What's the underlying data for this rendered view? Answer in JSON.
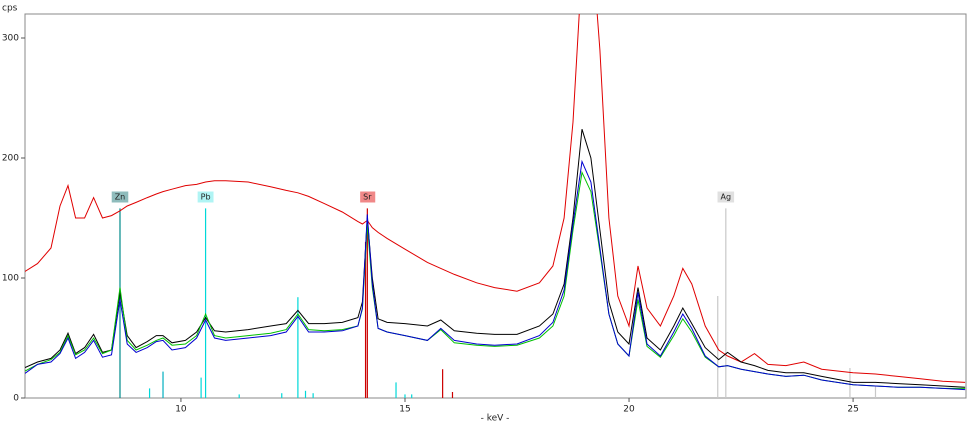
{
  "chart_data": {
    "type": "line",
    "y_label": "cps",
    "x_label": "- keV -",
    "xlim": [
      6.52,
      27.52
    ],
    "ylim": [
      0,
      320
    ],
    "xticks": [
      10,
      15,
      20,
      25
    ],
    "yticks": [
      0,
      100,
      200,
      300
    ],
    "x": [
      6.5,
      6.8,
      7.1,
      7.3,
      7.48,
      7.65,
      7.85,
      8.05,
      8.25,
      8.45,
      8.64,
      8.8,
      9.0,
      9.25,
      9.45,
      9.6,
      9.8,
      10.1,
      10.35,
      10.55,
      10.75,
      11.0,
      11.5,
      12.0,
      12.35,
      12.61,
      12.85,
      13.2,
      13.6,
      13.95,
      14.05,
      14.16,
      14.27,
      14.4,
      14.6,
      15.0,
      15.5,
      15.8,
      16.1,
      16.6,
      17.0,
      17.5,
      18.0,
      18.3,
      18.55,
      18.75,
      18.95,
      19.15,
      19.35,
      19.55,
      19.75,
      20.0,
      20.2,
      20.4,
      20.7,
      21.0,
      21.2,
      21.4,
      21.7,
      22.0,
      22.2,
      22.5,
      22.8,
      23.1,
      23.5,
      23.9,
      24.3,
      25.0,
      25.5,
      26.0,
      26.5,
      27.0,
      27.5
    ],
    "series": [
      {
        "color": "#e00000",
        "values": [
          105,
          112,
          125,
          160,
          177,
          150,
          150,
          167,
          150,
          152,
          156,
          160,
          163,
          167,
          170,
          172,
          174,
          177,
          178,
          180,
          181,
          181,
          180,
          176,
          173,
          171,
          168,
          162,
          155,
          147,
          145,
          148,
          142,
          138,
          133,
          124,
          113,
          108,
          103,
          96,
          92,
          89,
          96,
          110,
          150,
          230,
          360,
          390,
          290,
          150,
          85,
          60,
          110,
          75,
          60,
          85,
          108,
          95,
          60,
          40,
          35,
          30,
          37,
          28,
          27,
          30,
          24,
          21,
          20,
          18,
          16,
          14,
          13
        ]
      },
      {
        "color": "#000000",
        "values": [
          25,
          30,
          33,
          40,
          54,
          37,
          42,
          53,
          38,
          40,
          88,
          52,
          42,
          47,
          52,
          52,
          46,
          48,
          55,
          67,
          56,
          55,
          57,
          60,
          62,
          73,
          62,
          62,
          63,
          67,
          80,
          150,
          100,
          66,
          63,
          62,
          60,
          65,
          56,
          54,
          53,
          53,
          60,
          70,
          95,
          150,
          224,
          200,
          140,
          80,
          55,
          45,
          92,
          50,
          40,
          60,
          75,
          62,
          42,
          32,
          38,
          30,
          27,
          23,
          21,
          21,
          18,
          13,
          13,
          12,
          11,
          10,
          9
        ]
      },
      {
        "color": "#00c000",
        "values": [
          22,
          28,
          32,
          38,
          52,
          36,
          40,
          50,
          37,
          40,
          92,
          48,
          40,
          44,
          48,
          50,
          44,
          45,
          52,
          70,
          52,
          50,
          52,
          54,
          57,
          70,
          57,
          56,
          57,
          60,
          74,
          145,
          92,
          58,
          55,
          52,
          48,
          57,
          46,
          44,
          43,
          44,
          50,
          60,
          85,
          140,
          188,
          172,
          122,
          70,
          45,
          35,
          82,
          43,
          34,
          52,
          66,
          55,
          34,
          26,
          27,
          24,
          22,
          20,
          18,
          19,
          15,
          11,
          10,
          9,
          9,
          8,
          8
        ]
      },
      {
        "color": "#0000d0",
        "values": [
          20,
          28,
          30,
          37,
          50,
          33,
          38,
          48,
          34,
          36,
          82,
          45,
          38,
          42,
          47,
          48,
          40,
          42,
          50,
          65,
          50,
          48,
          50,
          52,
          55,
          68,
          55,
          55,
          56,
          60,
          75,
          153,
          95,
          58,
          55,
          52,
          48,
          58,
          48,
          45,
          44,
          45,
          52,
          63,
          90,
          145,
          197,
          180,
          125,
          70,
          45,
          35,
          88,
          45,
          35,
          55,
          70,
          58,
          35,
          26,
          27,
          24,
          22,
          20,
          18,
          19,
          15,
          11,
          10,
          9,
          9,
          8,
          7
        ]
      }
    ],
    "elements": [
      {
        "label": "Zn",
        "x": 8.64,
        "color": "#8fbcbc"
      },
      {
        "label": "Pb",
        "x": 10.55,
        "color": "#b0f4f4"
      },
      {
        "label": "Sr",
        "x": 14.16,
        "color": "#f08888"
      },
      {
        "label": "Ag",
        "x": 22.16,
        "color": "#e0e0e0"
      }
    ],
    "lines": [
      {
        "x": 8.64,
        "value": 158,
        "color": "#008b8b"
      },
      {
        "x": 9.3,
        "value": 8,
        "color": "#00d8d8"
      },
      {
        "x": 9.6,
        "value": 22,
        "color": "#00b0c0"
      },
      {
        "x": 10.45,
        "value": 17,
        "color": "#00d8d8"
      },
      {
        "x": 10.55,
        "value": 158,
        "color": "#00d8d8"
      },
      {
        "x": 11.3,
        "value": 3,
        "color": "#00d8d8"
      },
      {
        "x": 12.25,
        "value": 4,
        "color": "#00d8d8"
      },
      {
        "x": 12.61,
        "value": 84,
        "color": "#00d8d8"
      },
      {
        "x": 12.78,
        "value": 6,
        "color": "#00d8d8"
      },
      {
        "x": 12.95,
        "value": 4,
        "color": "#00d8d8"
      },
      {
        "x": 14.8,
        "value": 13,
        "color": "#00d8d8"
      },
      {
        "x": 15.0,
        "value": 3,
        "color": "#00d8d8"
      },
      {
        "x": 15.15,
        "value": 3,
        "color": "#00d8d8"
      },
      {
        "x": 14.12,
        "value": 130,
        "color": "#cc0000"
      },
      {
        "x": 14.16,
        "value": 158,
        "color": "#cc0000"
      },
      {
        "x": 15.84,
        "value": 24,
        "color": "#cc0000"
      },
      {
        "x": 16.06,
        "value": 5,
        "color": "#cc0000"
      },
      {
        "x": 21.98,
        "value": 85,
        "color": "#c8c8c8"
      },
      {
        "x": 22.16,
        "value": 158,
        "color": "#c8c8c8"
      },
      {
        "x": 24.93,
        "value": 25,
        "color": "#c8c8c8"
      },
      {
        "x": 25.5,
        "value": 10,
        "color": "#c8c8c8"
      }
    ]
  }
}
